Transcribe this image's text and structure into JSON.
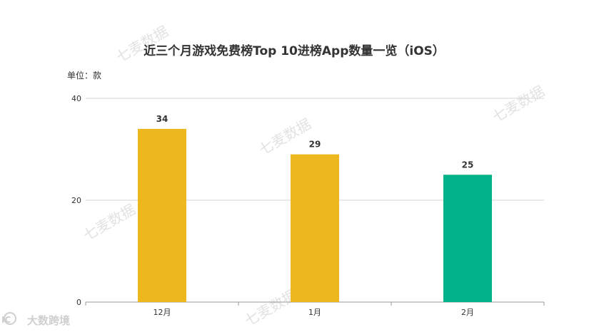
{
  "chart_data": {
    "type": "bar",
    "title": "近三个月游戏免费榜Top 10进榜App数量一览（iOS）",
    "unit_label": "单位：款",
    "categories": [
      "12月",
      "1月",
      "2月"
    ],
    "values": [
      34,
      29,
      25
    ],
    "bar_colors": [
      "#edb81d",
      "#edb81d",
      "#02b38a"
    ],
    "ylim": [
      0,
      40
    ],
    "yticks": [
      0,
      20,
      40
    ],
    "grid": true,
    "legend": "none"
  },
  "watermarks": [
    "七麦数据",
    "七麦数据",
    "七麦数据",
    "七麦数据",
    "七麦数据"
  ],
  "brand": {
    "logo": "IC",
    "name": "大数跨境"
  }
}
